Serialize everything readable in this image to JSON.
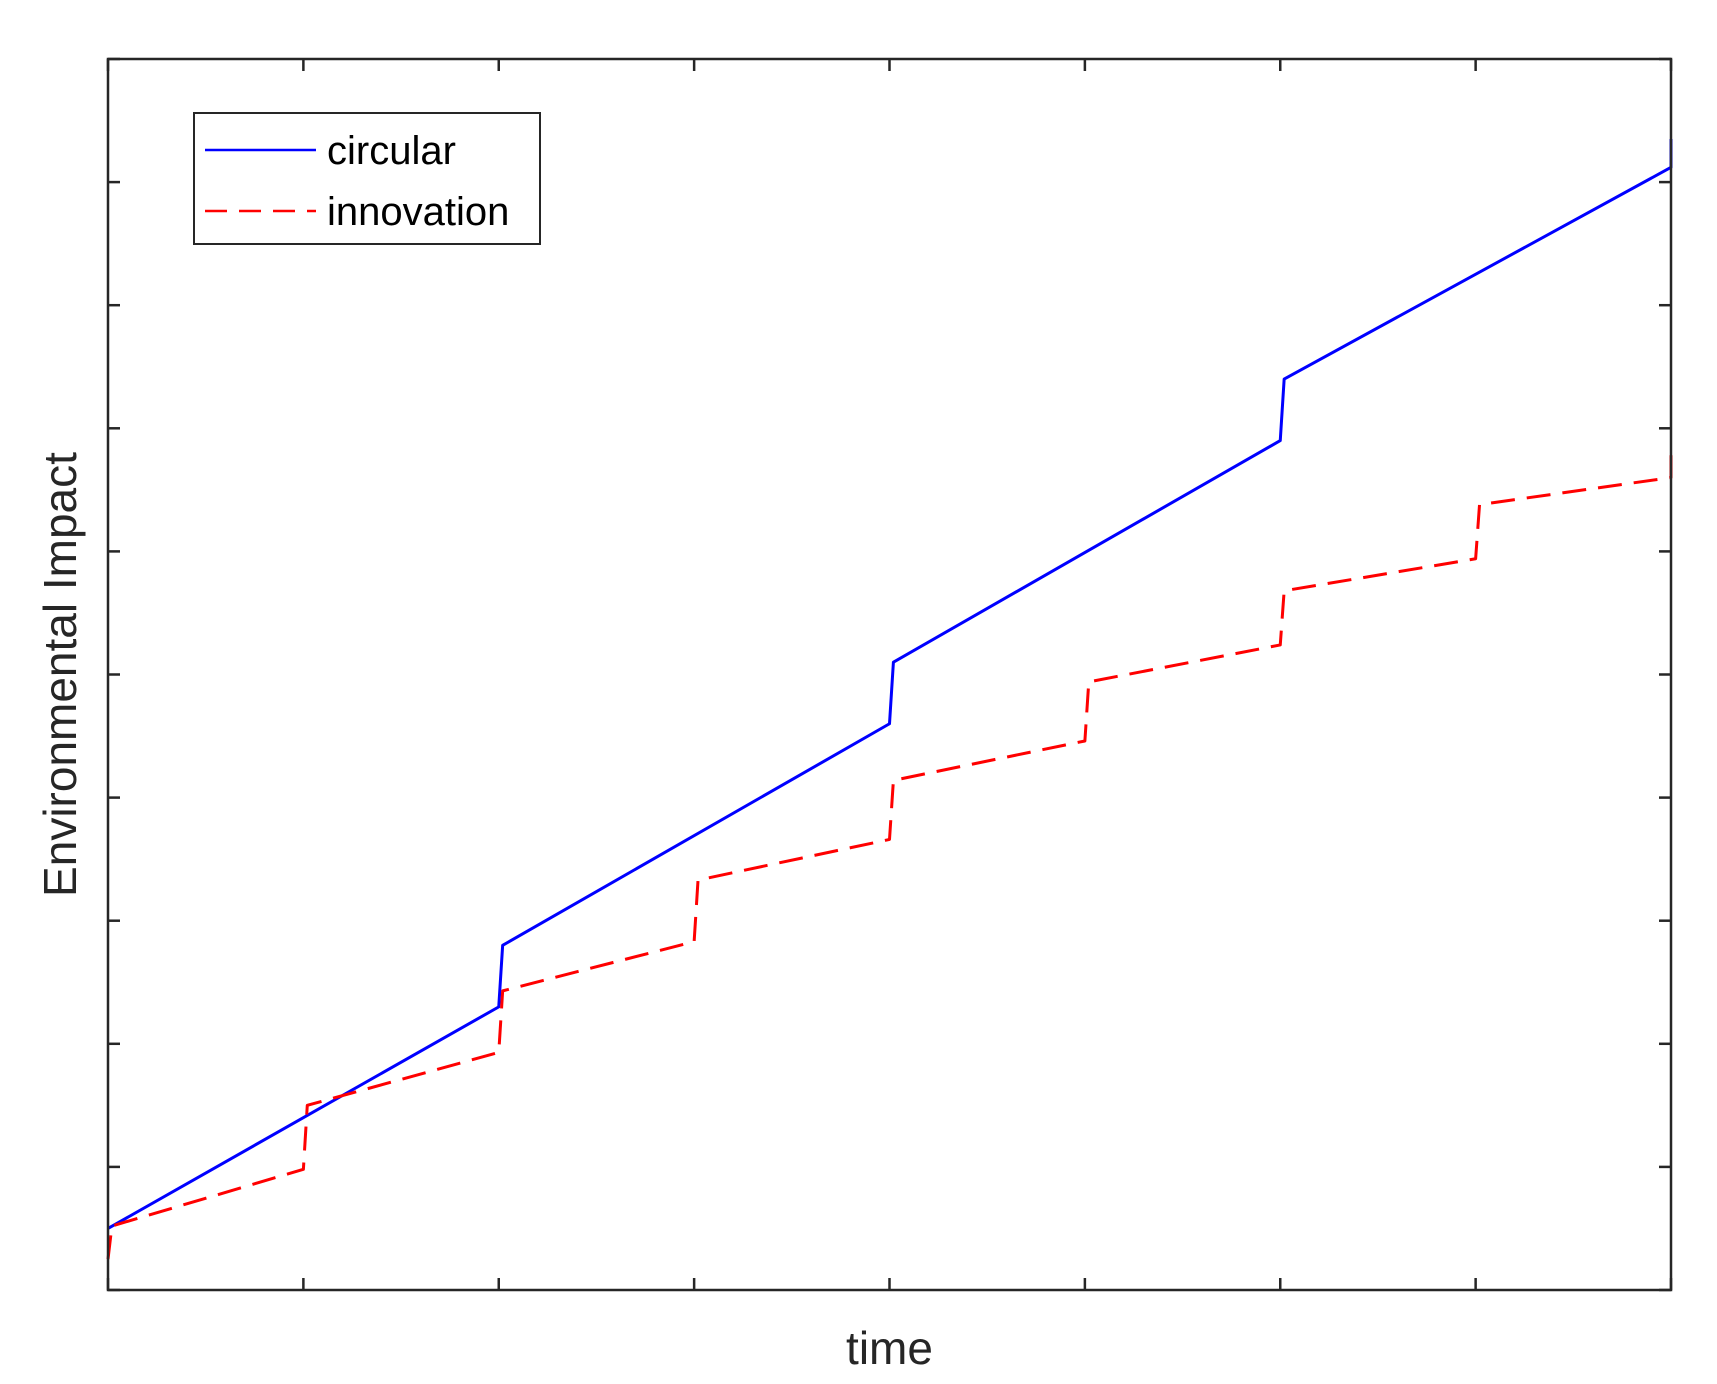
{
  "chart_data": {
    "type": "line",
    "title": "",
    "xlabel": "time",
    "ylabel": "Environmental Impact",
    "xlim": [
      0,
      8
    ],
    "ylim": [
      0,
      10
    ],
    "x_ticks": [
      0,
      1,
      2,
      3,
      4,
      5,
      6,
      7,
      8
    ],
    "y_ticks": [
      0,
      1,
      2,
      3,
      4,
      5,
      6,
      7,
      8,
      9,
      10
    ],
    "show_tick_labels": false,
    "grid": false,
    "legend_position": "top-left",
    "series": [
      {
        "name": "circular",
        "color": "#0000ff",
        "line_style": "solid",
        "points": [
          [
            0,
            0.5
          ],
          [
            2,
            2.3
          ],
          [
            2.02,
            2.8
          ],
          [
            4,
            4.6
          ],
          [
            4.02,
            5.1
          ],
          [
            6,
            6.9
          ],
          [
            6.02,
            7.4
          ],
          [
            8,
            9.12
          ],
          [
            8,
            9.35
          ]
        ]
      },
      {
        "name": "innovation",
        "color": "#ff0000",
        "line_style": "dashed",
        "points": [
          [
            0,
            0.25
          ],
          [
            0.02,
            0.52
          ],
          [
            1,
            0.98
          ],
          [
            1.02,
            1.5
          ],
          [
            2,
            1.93
          ],
          [
            2.02,
            2.43
          ],
          [
            3,
            2.83
          ],
          [
            3.02,
            3.33
          ],
          [
            4,
            3.66
          ],
          [
            4.02,
            4.14
          ],
          [
            5,
            4.46
          ],
          [
            5.02,
            4.94
          ],
          [
            6,
            5.24
          ],
          [
            6.02,
            5.68
          ],
          [
            7,
            5.94
          ],
          [
            7.02,
            6.38
          ],
          [
            8,
            6.6
          ],
          [
            8,
            6.8
          ]
        ]
      }
    ]
  }
}
